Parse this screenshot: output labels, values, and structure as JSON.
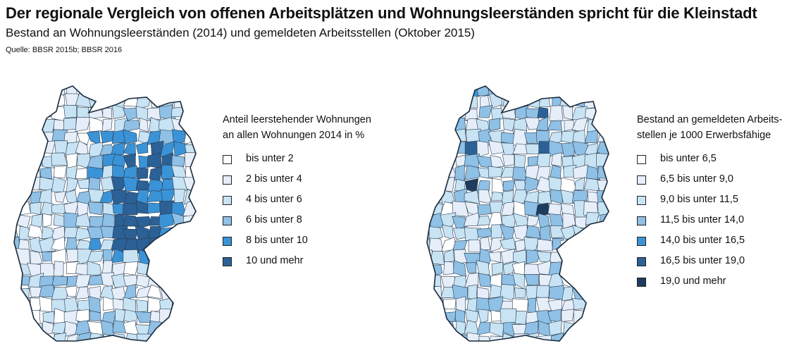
{
  "header": {
    "title": "Der regionale Vergleich von offenen Arbeitsplätzen und Wohnungsleerständen spricht für die Kleinstadt",
    "subtitle": "Bestand an Wohnungsleerständen (2014) und gemeldeten Arbeitsstellen (Oktober 2015)",
    "source": "Quelle: BBSR 2015b; BBSR 2016"
  },
  "maps": [
    {
      "legend": {
        "title_lines": [
          "Anteil leerstehender Wohnungen",
          "an allen Wohnungen 2014 in %"
        ],
        "classes": [
          {
            "label": "bis unter 2",
            "color": "#ffffff"
          },
          {
            "label": "2 bis unter 4",
            "color": "#e6eef9"
          },
          {
            "label": "4 bis unter 6",
            "color": "#c7e3f4"
          },
          {
            "label": "6 bis unter 8",
            "color": "#8fc0e6"
          },
          {
            "label": "8 bis unter 10",
            "color": "#3a93d6"
          },
          {
            "label": "10 und mehr",
            "color": "#2b6196"
          }
        ]
      }
    },
    {
      "legend": {
        "title_lines": [
          "Bestand an gemeldeten Arbeits-",
          "stellen je 1000 Erwerbsfähige"
        ],
        "classes": [
          {
            "label": "bis unter 6,5",
            "color": "#ffffff"
          },
          {
            "label": "6,5 bis unter 9,0",
            "color": "#e6eef9"
          },
          {
            "label": "9,0 bis unter 11,5",
            "color": "#c7e3f4"
          },
          {
            "label": "11,5 bis unter 14,0",
            "color": "#8fc0e6"
          },
          {
            "label": "14,0 bis unter 16,5",
            "color": "#3a93d6"
          },
          {
            "label": "16,5 bis unter 19,0",
            "color": "#2b6196"
          },
          {
            "label": "19,0 und mehr",
            "color": "#1d3c5e"
          }
        ]
      }
    }
  ]
}
